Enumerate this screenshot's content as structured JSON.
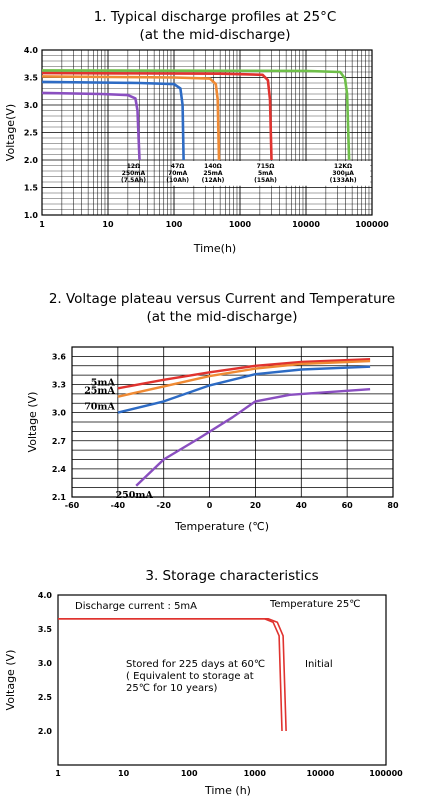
{
  "chart_data": [
    {
      "type": "line",
      "title": "1. Typical discharge profiles at 25°C",
      "subtitle": "(at  the mid-discharge)",
      "xlabel": "Time(h)",
      "ylabel": "Voltage(V)",
      "xscale": "log",
      "xlim": [
        1,
        100000
      ],
      "ylim": [
        1.0,
        4.0
      ],
      "grid": true,
      "x_ticks": [
        {
          "value": 1,
          "label": "1"
        },
        {
          "value": 10,
          "label": "10"
        },
        {
          "value": 100,
          "label": "100"
        },
        {
          "value": 1000,
          "label": "1000"
        },
        {
          "value": 10000,
          "label": "10000"
        },
        {
          "value": 100000,
          "label": "100000"
        }
      ],
      "y_ticks": [
        {
          "value": 1.0,
          "label": "1.0"
        },
        {
          "value": 1.5,
          "label": "1.5"
        },
        {
          "value": 2.0,
          "label": "2.0"
        },
        {
          "value": 2.5,
          "label": "2.5"
        },
        {
          "value": 3.0,
          "label": "3.0"
        },
        {
          "value": 3.5,
          "label": "3.5"
        },
        {
          "value": 4.0,
          "label": "4.0"
        }
      ],
      "series": [
        {
          "label_lines": [
            "12Ω",
            "250mA",
            "(7.5Ah)"
          ],
          "color": "#8a4fc0",
          "plateau": 3.2,
          "end_x": 30,
          "label_x": 30,
          "points": [
            [
              1,
              3.22
            ],
            [
              8,
              3.2
            ],
            [
              20,
              3.18
            ],
            [
              26,
              3.12
            ],
            [
              28,
              2.9
            ],
            [
              30,
              2.0
            ]
          ]
        },
        {
          "label_lines": [
            "47Ω",
            "70mA",
            "(10Ah)"
          ],
          "color": "#2d6bc4",
          "plateau": 3.4,
          "end_x": 140,
          "label_x": 140,
          "points": [
            [
              1,
              3.42
            ],
            [
              30,
              3.4
            ],
            [
              100,
              3.38
            ],
            [
              125,
              3.3
            ],
            [
              135,
              3.0
            ],
            [
              140,
              2.0
            ]
          ]
        },
        {
          "label_lines": [
            "140Ω",
            "25mA",
            "(12Ah)"
          ],
          "color": "#ef8a34",
          "plateau": 3.5,
          "end_x": 480,
          "label_x": 480,
          "points": [
            [
              1,
              3.52
            ],
            [
              100,
              3.5
            ],
            [
              350,
              3.48
            ],
            [
              430,
              3.38
            ],
            [
              460,
              3.1
            ],
            [
              480,
              2.0
            ]
          ]
        },
        {
          "label_lines": [
            "715Ω",
            "5mA",
            "(15Ah)"
          ],
          "color": "#e0332f",
          "plateau": 3.57,
          "end_x": 3000,
          "label_x": 3000,
          "points": [
            [
              1,
              3.58
            ],
            [
              500,
              3.57
            ],
            [
              2200,
              3.55
            ],
            [
              2650,
              3.45
            ],
            [
              2850,
              3.1
            ],
            [
              3000,
              2.0
            ]
          ]
        },
        {
          "label_lines": [
            "12KΩ",
            "300μA",
            "(133Ah)"
          ],
          "color": "#6fbf4a",
          "plateau": 3.62,
          "end_x": 45000,
          "label_x": 45000,
          "points": [
            [
              1,
              3.63
            ],
            [
              10000,
              3.62
            ],
            [
              33000,
              3.6
            ],
            [
              39000,
              3.48
            ],
            [
              42000,
              3.2
            ],
            [
              45000,
              2.0
            ]
          ]
        }
      ]
    },
    {
      "type": "line",
      "title": "2. Voltage plateau versus Current and Temperature",
      "subtitle": "(at the mid-discharge)",
      "xlabel": "Temperature (℃)",
      "ylabel": "Voltage (V)",
      "xlim": [
        -60,
        80
      ],
      "ylim": [
        2.1,
        3.7
      ],
      "grid": true,
      "x_ticks": [
        {
          "value": -60,
          "label": "-60"
        },
        {
          "value": -40,
          "label": "-40"
        },
        {
          "value": -20,
          "label": "-20"
        },
        {
          "value": 0,
          "label": "0"
        },
        {
          "value": 20,
          "label": "20"
        },
        {
          "value": 40,
          "label": "40"
        },
        {
          "value": 60,
          "label": "60"
        },
        {
          "value": 80,
          "label": "80"
        }
      ],
      "y_ticks": [
        {
          "value": 2.1,
          "label": "2.1"
        },
        {
          "value": 2.4,
          "label": "2.4"
        },
        {
          "value": 2.7,
          "label": "2.7"
        },
        {
          "value": 3.0,
          "label": "3.0"
        },
        {
          "value": 3.3,
          "label": "3.3"
        },
        {
          "value": 3.6,
          "label": "3.6"
        }
      ],
      "series": [
        {
          "name": "5mA",
          "color": "#e0332f",
          "points": [
            [
              -40,
              3.26
            ],
            [
              -20,
              3.35
            ],
            [
              0,
              3.43
            ],
            [
              20,
              3.5
            ],
            [
              40,
              3.54
            ],
            [
              70,
              3.57
            ]
          ]
        },
        {
          "name": "25mA",
          "color": "#ef8a34",
          "points": [
            [
              -40,
              3.17
            ],
            [
              -20,
              3.28
            ],
            [
              0,
              3.39
            ],
            [
              20,
              3.47
            ],
            [
              40,
              3.52
            ],
            [
              70,
              3.55
            ]
          ]
        },
        {
          "name": "70mA",
          "color": "#2d6bc4",
          "points": [
            [
              -40,
              3.0
            ],
            [
              -20,
              3.12
            ],
            [
              0,
              3.29
            ],
            [
              20,
              3.41
            ],
            [
              40,
              3.46
            ],
            [
              70,
              3.49
            ]
          ]
        },
        {
          "name": "250mA",
          "color": "#8a4fc0",
          "points": [
            [
              -32,
              2.22
            ],
            [
              -20,
              2.5
            ],
            [
              -5,
              2.72
            ],
            [
              10,
              2.95
            ],
            [
              20,
              3.12
            ],
            [
              35,
              3.19
            ],
            [
              70,
              3.25
            ]
          ]
        }
      ]
    },
    {
      "type": "line",
      "title": "3. Storage characteristics",
      "xlabel": "Time (h)",
      "ylabel": "Voltage (V)",
      "xscale": "log",
      "xlim": [
        1,
        100000
      ],
      "ylim": [
        1.5,
        4.0
      ],
      "grid": false,
      "x_ticks": [
        {
          "value": 1,
          "label": "1"
        },
        {
          "value": 10,
          "label": "10"
        },
        {
          "value": 100,
          "label": "100"
        },
        {
          "value": 1000,
          "label": "1000"
        },
        {
          "value": 10000,
          "label": "10000"
        },
        {
          "value": 100000,
          "label": "100000"
        }
      ],
      "y_ticks": [
        {
          "value": 2.0,
          "label": "2.0"
        },
        {
          "value": 2.5,
          "label": "2.5"
        },
        {
          "value": 3.0,
          "label": "3.0"
        },
        {
          "value": 3.5,
          "label": "3.5"
        },
        {
          "value": 4.0,
          "label": "4.0"
        }
      ],
      "annotations": {
        "discharge_current": "Discharge current : 5mA",
        "temperature": "Temperature  25℃",
        "stored_lines": [
          "Stored for 225 days at 60℃",
          "( Equivalent to storage at",
          "25℃ for 10 years)"
        ],
        "initial": "Initial"
      },
      "series": [
        {
          "name": "Initial",
          "color": "#e0332f",
          "points": [
            [
              1,
              3.65
            ],
            [
              1600,
              3.65
            ],
            [
              2200,
              3.6
            ],
            [
              2700,
              3.4
            ],
            [
              3000,
              2.0
            ]
          ]
        },
        {
          "name": "Stored",
          "color": "#e0332f",
          "points": [
            [
              1,
              3.65
            ],
            [
              1400,
              3.65
            ],
            [
              1900,
              3.6
            ],
            [
              2350,
              3.4
            ],
            [
              2600,
              2.0
            ]
          ]
        }
      ]
    }
  ]
}
